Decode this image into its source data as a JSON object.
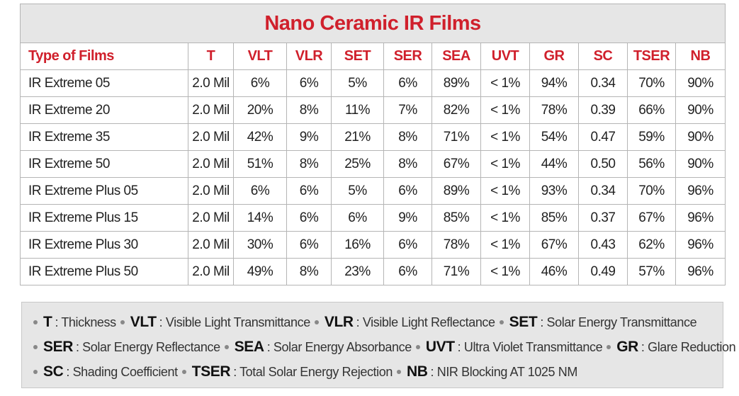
{
  "table": {
    "title": "Nano Ceramic IR Films",
    "header": [
      "Type of Films",
      "T",
      "VLT",
      "VLR",
      "SET",
      "SER",
      "SEA",
      "UVT",
      "GR",
      "SC",
      "TSER",
      "NB"
    ],
    "rows": [
      [
        "IR Extreme 05",
        "2.0 Mil",
        "6%",
        "6%",
        "5%",
        "6%",
        "89%",
        "< 1%",
        "94%",
        "0.34",
        "70%",
        "90%"
      ],
      [
        "IR Extreme 20",
        "2.0 Mil",
        "20%",
        "8%",
        "11%",
        "7%",
        "82%",
        "< 1%",
        "78%",
        "0.39",
        "66%",
        "90%"
      ],
      [
        "IR Extreme 35",
        "2.0 Mil",
        "42%",
        "9%",
        "21%",
        "8%",
        "71%",
        "< 1%",
        "54%",
        "0.47",
        "59%",
        "90%"
      ],
      [
        "IR Extreme 50",
        "2.0 Mil",
        "51%",
        "8%",
        "25%",
        "8%",
        "67%",
        "< 1%",
        "44%",
        "0.50",
        "56%",
        "90%"
      ],
      [
        "IR Extreme Plus 05",
        "2.0 Mil",
        "6%",
        "6%",
        "5%",
        "6%",
        "89%",
        "< 1%",
        "93%",
        "0.34",
        "70%",
        "96%"
      ],
      [
        "IR Extreme Plus 15",
        "2.0 Mil",
        "14%",
        "6%",
        "6%",
        "9%",
        "85%",
        "< 1%",
        "85%",
        "0.37",
        "67%",
        "96%"
      ],
      [
        "IR Extreme Plus 30",
        "2.0 Mil",
        "30%",
        "6%",
        "16%",
        "6%",
        "78%",
        "< 1%",
        "67%",
        "0.43",
        "62%",
        "96%"
      ],
      [
        "IR Extreme Plus 50",
        "2.0 Mil",
        "49%",
        "8%",
        "23%",
        "6%",
        "71%",
        "< 1%",
        "46%",
        "0.49",
        "57%",
        "96%"
      ]
    ]
  },
  "legend": {
    "lines": [
      [
        {
          "abbr": "T",
          "desc": ": Thickness"
        },
        {
          "abbr": "VLT",
          "desc": ": Visible Light Transmittance"
        },
        {
          "abbr": "VLR",
          "desc": ": Visible Light Reflectance"
        },
        {
          "abbr": "SET",
          "desc": ": Solar Energy Transmittance"
        }
      ],
      [
        {
          "abbr": "SER",
          "desc": ": Solar Energy Reflectance"
        },
        {
          "abbr": "SEA",
          "desc": ": Solar Energy Absorbance"
        },
        {
          "abbr": "UVT",
          "desc": ": Ultra Violet Transmittance"
        },
        {
          "abbr": "GR",
          "desc": ": Glare Reduction"
        }
      ],
      [
        {
          "abbr": "SC",
          "desc": ": Shading Coefficient"
        },
        {
          "abbr": "TSER",
          "desc": ": Total Solar Energy Rejection"
        },
        {
          "abbr": "NB",
          "desc": ": NIR Blocking AT 1025 NM"
        }
      ]
    ]
  }
}
